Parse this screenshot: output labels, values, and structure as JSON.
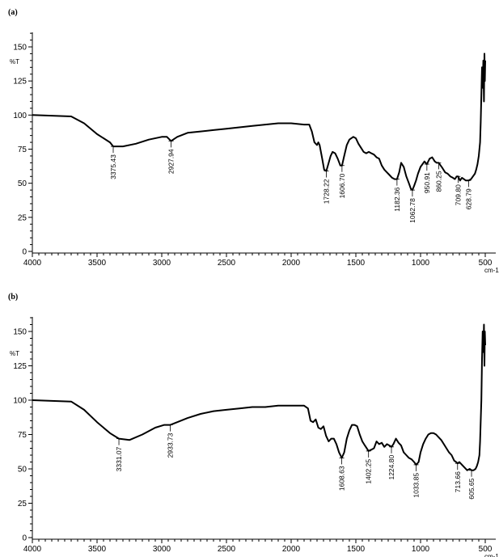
{
  "chart_data": [
    {
      "type": "line",
      "panel_label": "(a)",
      "ylabel": "%T",
      "xlabel": "cm-1",
      "xlim": [
        4000,
        500
      ],
      "ylim": [
        0,
        150
      ],
      "x_ticks": [
        "4000",
        "3500",
        "3000",
        "2500",
        "2000",
        "1500",
        "1000",
        "500"
      ],
      "y_ticks": [
        "0",
        "25",
        "50",
        "75",
        "100",
        "125",
        "150"
      ],
      "grid": false,
      "peaks": [
        {
          "label": "3375.43",
          "x": 3375,
          "y": 77
        },
        {
          "label": "2927.94",
          "x": 2928,
          "y": 81
        },
        {
          "label": "1728.22",
          "x": 1728,
          "y": 59
        },
        {
          "label": "1606.70",
          "x": 1607,
          "y": 63
        },
        {
          "label": "1182.36",
          "x": 1182,
          "y": 53
        },
        {
          "label": "1062.78",
          "x": 1063,
          "y": 45
        },
        {
          "label": "950.91",
          "x": 951,
          "y": 64
        },
        {
          "label": "860.25",
          "x": 860,
          "y": 65
        },
        {
          "label": "709.80",
          "x": 710,
          "y": 55
        },
        {
          "label": "628.79",
          "x": 629,
          "y": 52
        }
      ],
      "series": [
        {
          "x": [
            4000,
            3700,
            3600,
            3500,
            3400,
            3375,
            3300,
            3200,
            3100,
            3000,
            2960,
            2928,
            2880,
            2800,
            2700,
            2600,
            2500,
            2400,
            2300,
            2200,
            2100,
            2000,
            1900,
            1860,
            1840,
            1820,
            1800,
            1790,
            1780,
            1760,
            1745,
            1728,
            1710,
            1695,
            1680,
            1660,
            1640,
            1620,
            1607,
            1590,
            1570,
            1550,
            1520,
            1500,
            1480,
            1460,
            1440,
            1420,
            1400,
            1380,
            1360,
            1340,
            1320,
            1300,
            1280,
            1260,
            1240,
            1220,
            1200,
            1182,
            1165,
            1150,
            1130,
            1110,
            1090,
            1075,
            1063,
            1050,
            1035,
            1020,
            1000,
            985,
            970,
            951,
            930,
            910,
            890,
            875,
            860,
            845,
            830,
            810,
            790,
            770,
            750,
            735,
            720,
            710,
            695,
            680,
            665,
            650,
            629,
            610,
            595,
            580,
            570,
            560,
            550,
            540,
            535,
            530,
            525,
            520,
            515,
            510,
            506,
            503,
            500
          ],
          "y": [
            100,
            99,
            94,
            86,
            80,
            77,
            77,
            79,
            82,
            84,
            84,
            81,
            84,
            87,
            88,
            89,
            90,
            91,
            92,
            93,
            94,
            94,
            93,
            93,
            88,
            80,
            78,
            80,
            78,
            68,
            60,
            59,
            65,
            70,
            73,
            72,
            68,
            63,
            63,
            70,
            78,
            82,
            84,
            83,
            79,
            76,
            73,
            72,
            73,
            72,
            71,
            69,
            68,
            63,
            60,
            58,
            56,
            54,
            53,
            53,
            58,
            65,
            62,
            55,
            50,
            46,
            45,
            48,
            52,
            57,
            62,
            64,
            66,
            64,
            68,
            69,
            66,
            65,
            65,
            63,
            61,
            58,
            57,
            55,
            54,
            53,
            55,
            55,
            52,
            54,
            53,
            52,
            52,
            53,
            55,
            57,
            60,
            64,
            70,
            80,
            95,
            115,
            135,
            120,
            140,
            110,
            145,
            125,
            140
          ]
        }
      ]
    },
    {
      "type": "line",
      "panel_label": "(b)",
      "ylabel": "%T",
      "xlabel": "cm-1",
      "xlim": [
        4000,
        500
      ],
      "ylim": [
        0,
        150
      ],
      "x_ticks": [
        "4000",
        "3500",
        "3000",
        "2500",
        "2000",
        "1500",
        "1000",
        "500"
      ],
      "y_ticks": [
        "0",
        "25",
        "50",
        "75",
        "100",
        "125",
        "150"
      ],
      "grid": false,
      "peaks": [
        {
          "label": "3331.07",
          "x": 3331,
          "y": 72
        },
        {
          "label": "2933.73",
          "x": 2934,
          "y": 82
        },
        {
          "label": "1608.63",
          "x": 1609,
          "y": 58
        },
        {
          "label": "1402.25",
          "x": 1402,
          "y": 63
        },
        {
          "label": "1224.80",
          "x": 1225,
          "y": 66
        },
        {
          "label": "1033.85",
          "x": 1034,
          "y": 53
        },
        {
          "label": "713.66",
          "x": 714,
          "y": 54
        },
        {
          "label": "605.65",
          "x": 606,
          "y": 49
        }
      ],
      "series": [
        {
          "x": [
            4000,
            3700,
            3600,
            3500,
            3400,
            3331,
            3250,
            3150,
            3050,
            2980,
            2934,
            2880,
            2800,
            2700,
            2600,
            2500,
            2400,
            2300,
            2200,
            2100,
            2000,
            1900,
            1870,
            1850,
            1830,
            1810,
            1790,
            1770,
            1750,
            1730,
            1710,
            1690,
            1670,
            1650,
            1630,
            1609,
            1590,
            1570,
            1550,
            1530,
            1510,
            1490,
            1470,
            1450,
            1430,
            1402,
            1380,
            1360,
            1340,
            1320,
            1300,
            1280,
            1260,
            1240,
            1225,
            1210,
            1190,
            1170,
            1150,
            1130,
            1110,
            1090,
            1070,
            1050,
            1034,
            1015,
            1000,
            980,
            960,
            940,
            920,
            900,
            880,
            860,
            840,
            820,
            800,
            780,
            760,
            740,
            725,
            714,
            700,
            680,
            660,
            640,
            620,
            606,
            590,
            575,
            565,
            555,
            545,
            540,
            535,
            530,
            525,
            520,
            515,
            510,
            506,
            503,
            500
          ],
          "y": [
            100,
            99,
            93,
            84,
            76,
            72,
            71,
            75,
            80,
            82,
            82,
            84,
            87,
            90,
            92,
            93,
            94,
            95,
            95,
            96,
            96,
            96,
            94,
            85,
            84,
            86,
            80,
            79,
            81,
            74,
            70,
            72,
            72,
            68,
            62,
            58,
            62,
            72,
            78,
            82,
            82,
            81,
            75,
            70,
            67,
            63,
            64,
            65,
            70,
            68,
            69,
            66,
            68,
            67,
            66,
            68,
            72,
            69,
            67,
            62,
            60,
            58,
            57,
            55,
            53,
            55,
            62,
            68,
            72,
            75,
            76,
            76,
            75,
            73,
            71,
            68,
            65,
            62,
            60,
            56,
            55,
            54,
            55,
            53,
            51,
            49,
            50,
            49,
            49,
            50,
            52,
            55,
            60,
            70,
            85,
            100,
            130,
            150,
            135,
            155,
            125,
            150,
            140
          ]
        }
      ]
    }
  ]
}
